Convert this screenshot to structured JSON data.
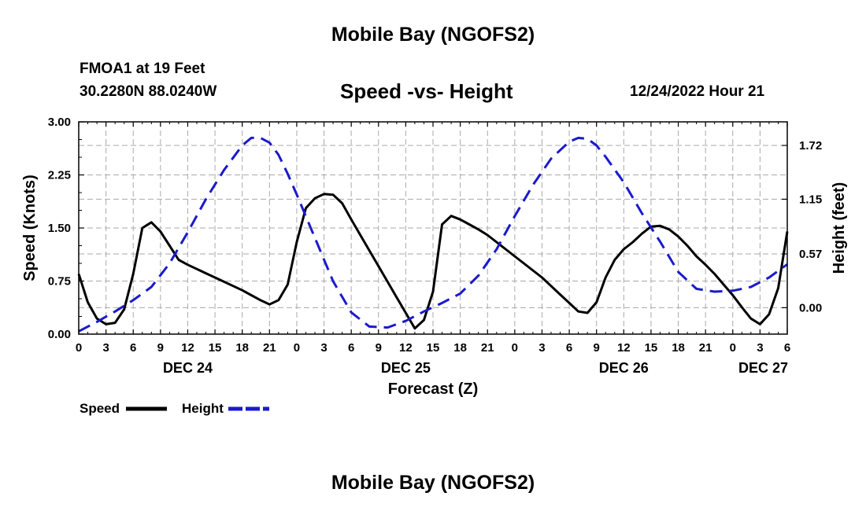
{
  "header": {
    "title": "Mobile Bay (NGOFS2)",
    "station": "FMOA1 at 19 Feet",
    "coords": "30.2280N  88.0240W",
    "subtitle": "Speed -vs- Height",
    "datetime": "12/24/2022 Hour 21"
  },
  "footer": {
    "title": "Mobile Bay (NGOFS2)"
  },
  "legend": {
    "speed_label": "Speed",
    "height_label": "Height"
  },
  "colors": {
    "speed": "#000000",
    "height": "#1a1acc",
    "grid": "#aaaaaa"
  },
  "chart_data": {
    "type": "line",
    "xlabel": "Forecast (Z)",
    "ylabel_left": "Speed (Knots)",
    "ylabel_right": "Height (feet)",
    "x_range_hours": [
      0,
      78
    ],
    "ylim_left": [
      0,
      3.0
    ],
    "ylim_right": [
      -0.28,
      1.97
    ],
    "left_ticks": [
      "0.00",
      "0.75",
      "1.50",
      "2.25",
      "3.00"
    ],
    "right_ticks": [
      "0.00",
      "0.57",
      "1.15",
      "1.72"
    ],
    "x_tick_labels": [
      "0",
      "3",
      "6",
      "9",
      "12",
      "15",
      "18",
      "21",
      "0",
      "3",
      "6",
      "9",
      "12",
      "15",
      "18",
      "21",
      "0",
      "3",
      "6",
      "9",
      "12",
      "15",
      "18",
      "21",
      "0",
      "3",
      "6"
    ],
    "day_labels": [
      {
        "label": "DEC 24",
        "hour": 12
      },
      {
        "label": "DEC 25",
        "hour": 36
      },
      {
        "label": "DEC 26",
        "hour": 60
      },
      {
        "label": "DEC 27",
        "hour": 78
      }
    ],
    "series": [
      {
        "name": "Speed",
        "axis": "left",
        "style": "solid",
        "x": [
          0,
          1,
          2,
          3,
          4,
          5,
          6,
          7,
          8,
          9,
          10,
          11,
          12,
          13,
          14,
          15,
          16,
          17,
          18,
          19,
          20,
          21,
          22,
          23,
          24,
          25,
          26,
          27,
          28,
          29,
          30,
          31,
          32,
          33,
          34,
          35,
          36,
          37,
          38,
          39,
          40,
          41,
          42,
          43,
          44,
          45,
          46,
          47,
          48,
          49,
          50,
          51,
          52,
          53,
          54,
          55,
          56,
          57,
          58,
          59,
          60,
          61,
          62,
          63,
          64,
          65,
          66,
          67,
          68,
          69,
          70,
          71,
          72,
          73,
          74,
          75,
          76,
          77,
          78
        ],
        "values": [
          0.85,
          0.45,
          0.22,
          0.14,
          0.16,
          0.35,
          0.85,
          1.5,
          1.58,
          1.45,
          1.25,
          1.05,
          0.98,
          0.92,
          0.86,
          0.8,
          0.74,
          0.68,
          0.62,
          0.55,
          0.48,
          0.42,
          0.48,
          0.7,
          1.3,
          1.78,
          1.92,
          1.98,
          1.97,
          1.85,
          1.62,
          1.4,
          1.18,
          0.96,
          0.74,
          0.52,
          0.3,
          0.08,
          0.2,
          0.6,
          1.55,
          1.67,
          1.62,
          1.55,
          1.48,
          1.4,
          1.3,
          1.2,
          1.1,
          1.0,
          0.9,
          0.8,
          0.68,
          0.56,
          0.44,
          0.32,
          0.3,
          0.45,
          0.8,
          1.05,
          1.2,
          1.3,
          1.42,
          1.52,
          1.53,
          1.48,
          1.38,
          1.25,
          1.1,
          0.98,
          0.85,
          0.7,
          0.55,
          0.38,
          0.22,
          0.14,
          0.28,
          0.65,
          1.45
        ]
      },
      {
        "name": "Height",
        "axis": "right",
        "style": "dashed",
        "x": [
          0,
          2,
          4,
          6,
          8,
          10,
          12,
          14,
          16,
          18,
          19,
          20,
          21,
          22,
          23,
          24,
          26,
          28,
          30,
          32,
          34,
          36,
          38,
          40,
          42,
          44,
          46,
          48,
          50,
          52,
          54,
          55,
          56,
          57,
          58,
          60,
          62,
          64,
          66,
          68,
          70,
          72,
          74,
          76,
          78
        ],
        "values": [
          -0.25,
          -0.15,
          -0.04,
          0.08,
          0.22,
          0.47,
          0.8,
          1.15,
          1.46,
          1.72,
          1.8,
          1.8,
          1.75,
          1.62,
          1.42,
          1.2,
          0.74,
          0.28,
          -0.05,
          -0.2,
          -0.21,
          -0.14,
          -0.04,
          0.05,
          0.15,
          0.34,
          0.62,
          0.97,
          1.3,
          1.58,
          1.76,
          1.8,
          1.79,
          1.72,
          1.6,
          1.33,
          1.0,
          0.7,
          0.38,
          0.2,
          0.17,
          0.18,
          0.22,
          0.32,
          0.46
        ]
      }
    ]
  }
}
